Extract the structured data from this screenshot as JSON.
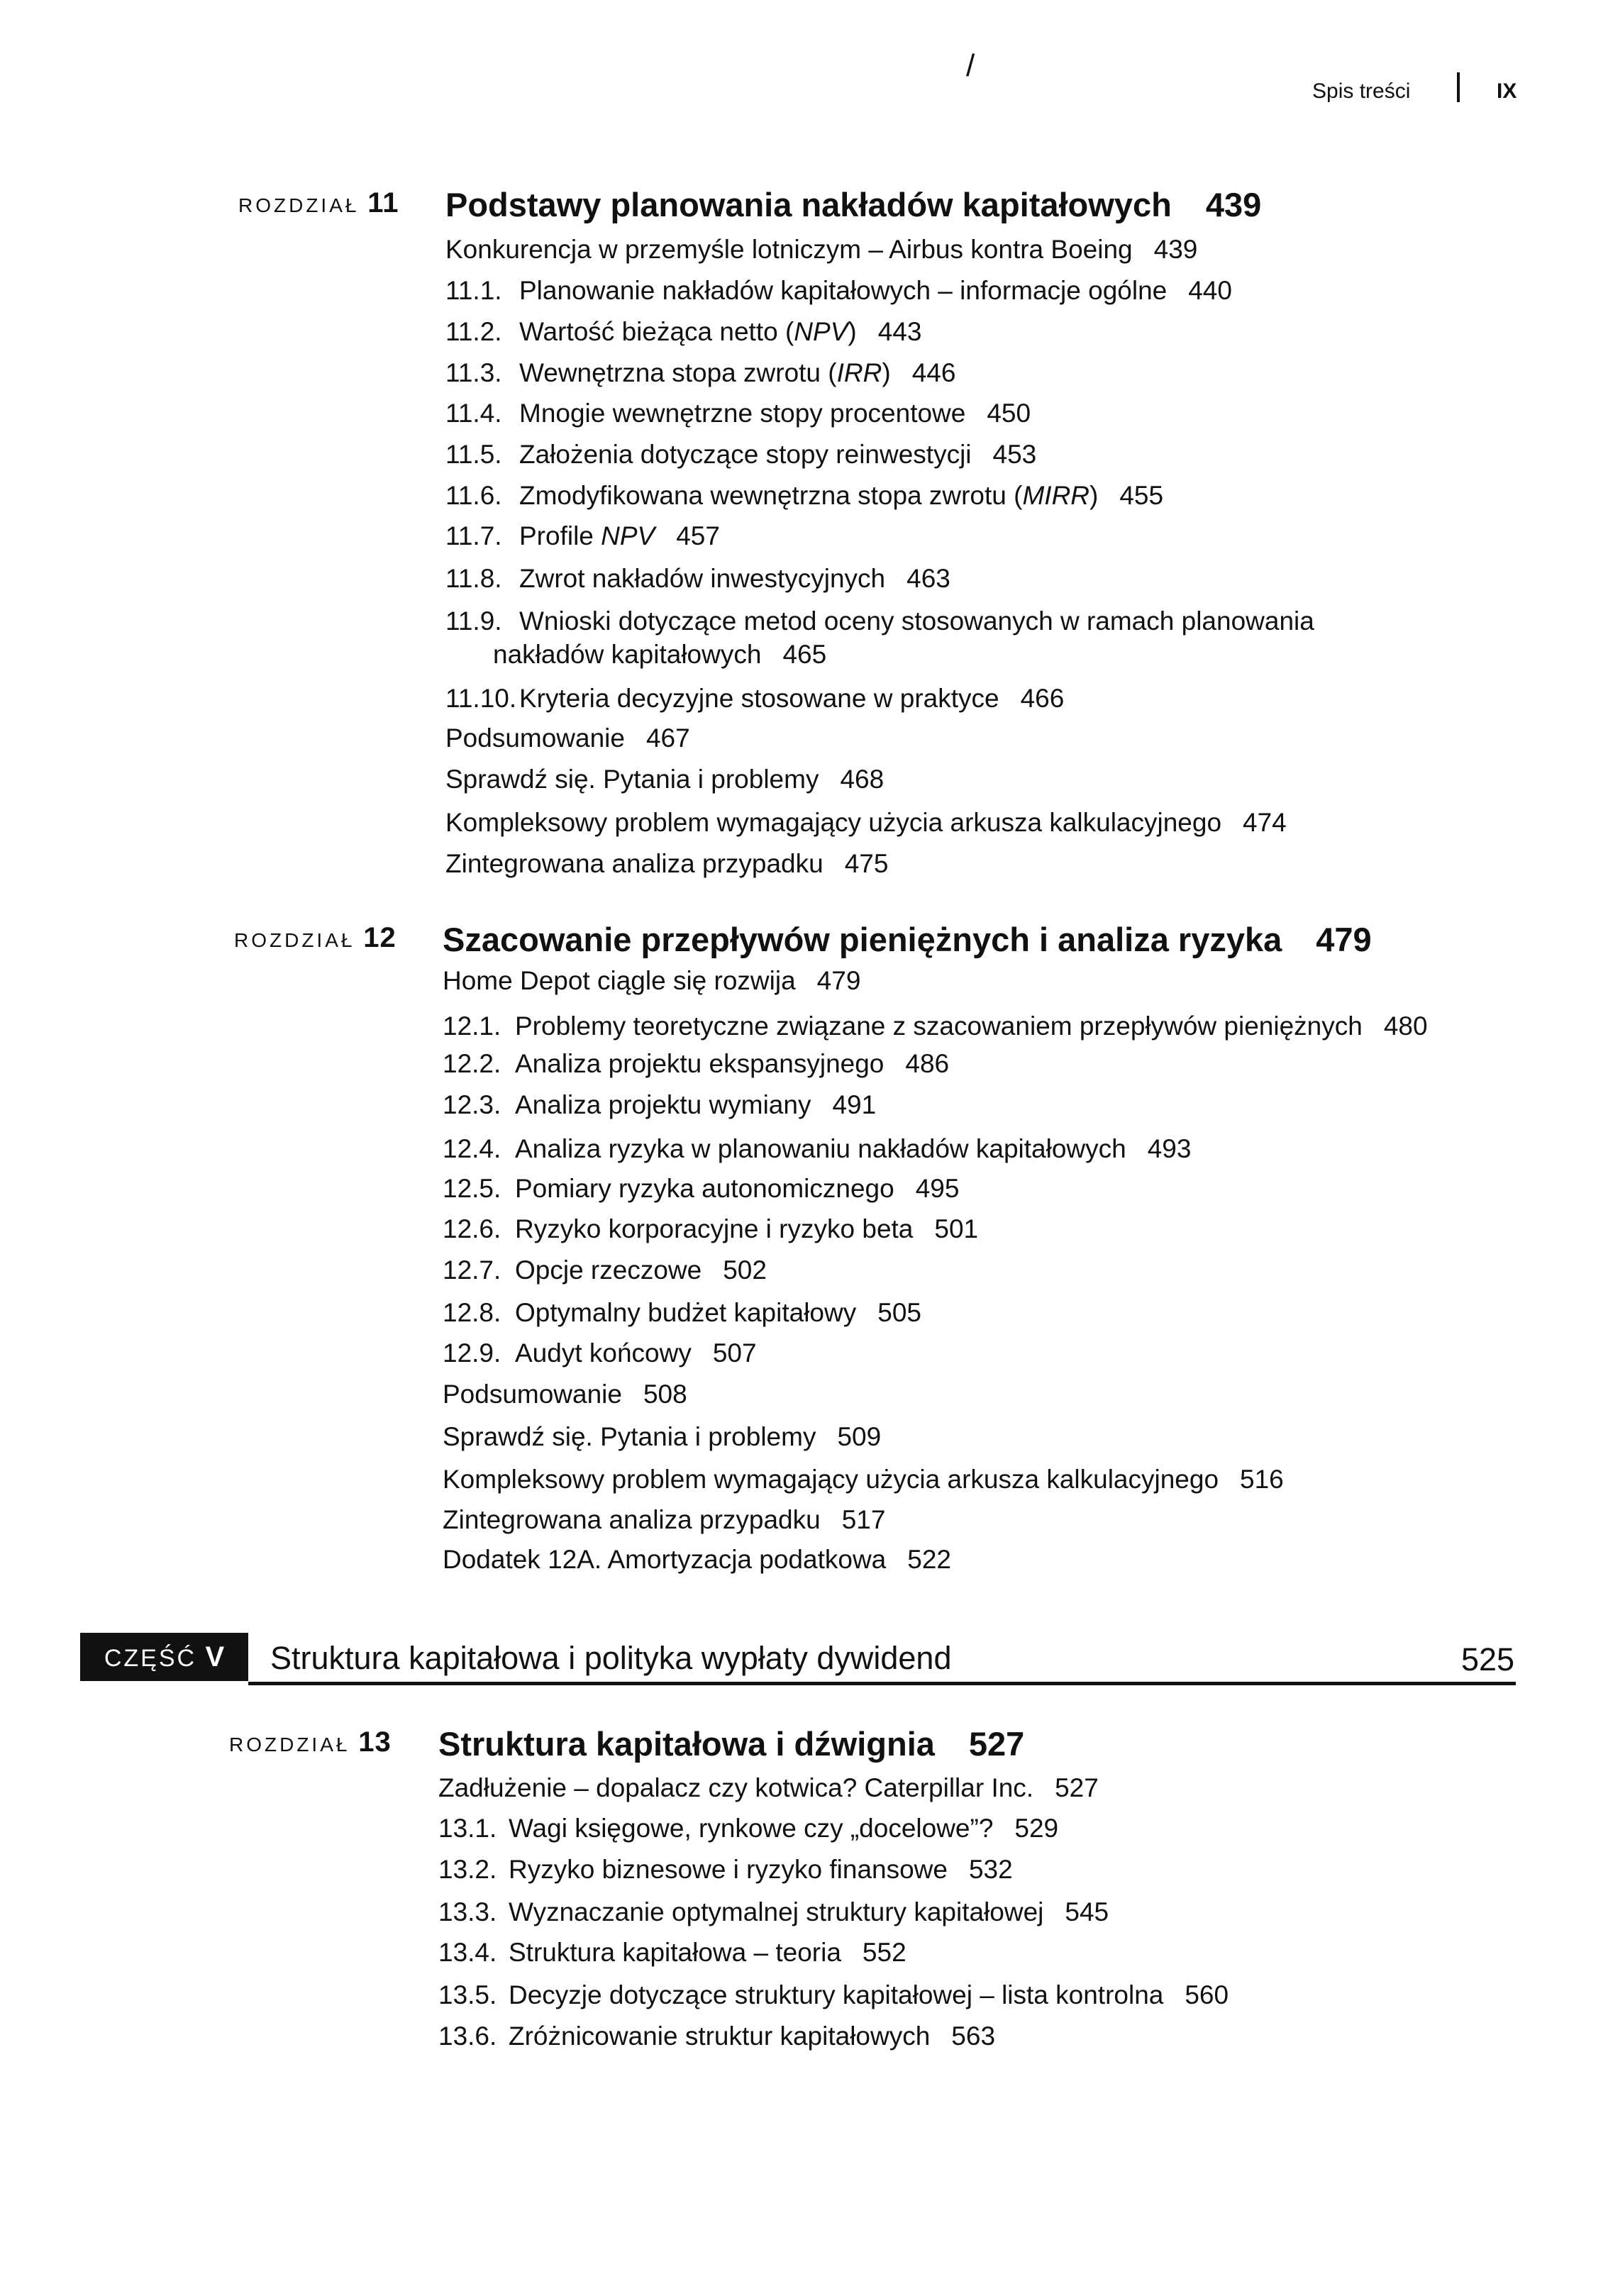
{
  "header": {
    "section": "Spis treści",
    "page": "IX",
    "mark": "/"
  },
  "chapters": [
    {
      "label": "ROZDZIAŁ",
      "number": "11",
      "title": "Podstawy planowania nakładów kapitałowych",
      "page": "439",
      "entries": [
        {
          "num": "",
          "text": "Konkurencja w przemyśle lotniczym – Airbus kontra Boeing",
          "page": "439"
        },
        {
          "num": "11.1.",
          "text": "Planowanie nakładów kapitałowych – informacje ogólne",
          "page": "440"
        },
        {
          "num": "11.2.",
          "text": "Wartość bieżąca netto (",
          "em": "NPV",
          "after": ")",
          "page": "443"
        },
        {
          "num": "11.3.",
          "text": "Wewnętrzna stopa zwrotu (",
          "em": "IRR",
          "after": ")",
          "page": "446"
        },
        {
          "num": "11.4.",
          "text": "Mnogie wewnętrzne stopy procentowe",
          "page": "450"
        },
        {
          "num": "11.5.",
          "text": "Założenia dotyczące stopy reinwestycji",
          "page": "453"
        },
        {
          "num": "11.6.",
          "text": "Zmodyfikowana wewnętrzna stopa zwrotu (",
          "em": "MIRR",
          "after": ")",
          "page": "455"
        },
        {
          "num": "11.7.",
          "text": "Profile ",
          "em": "NPV",
          "after": "",
          "page": "457"
        },
        {
          "num": "11.8.",
          "text": "Zwrot nakładów inwestycyjnych",
          "page": "463"
        },
        {
          "num": "11.9.",
          "text": "Wnioski dotyczące metod oceny stosowanych w ramach planowania",
          "page": ""
        },
        {
          "num": "",
          "text": "nakładów kapitałowych",
          "page": "465",
          "cont": true
        },
        {
          "num": "11.10.",
          "text": "Kryteria decyzyjne stosowane w praktyce",
          "page": "466"
        },
        {
          "num": "",
          "text": "Podsumowanie",
          "page": "467"
        },
        {
          "num": "",
          "text": "Sprawdź się. Pytania i problemy",
          "page": "468"
        },
        {
          "num": "",
          "text": "Kompleksowy problem wymagający użycia arkusza kalkulacyjnego",
          "page": "474"
        },
        {
          "num": "",
          "text": "Zintegrowana analiza przypadku",
          "page": "475"
        }
      ]
    },
    {
      "label": "ROZDZIAŁ",
      "number": "12",
      "title": "Szacowanie przepływów pieniężnych i analiza ryzyka",
      "page": "479",
      "entries": [
        {
          "num": "",
          "text": "Home Depot ciągle się rozwija",
          "page": "479"
        },
        {
          "num": "12.1.",
          "text": "Problemy teoretyczne związane z szacowaniem przepływów pieniężnych",
          "page": "480"
        },
        {
          "num": "12.2.",
          "text": "Analiza projektu ekspansyjnego",
          "page": "486"
        },
        {
          "num": "12.3.",
          "text": "Analiza projektu wymiany",
          "page": "491"
        },
        {
          "num": "12.4.",
          "text": "Analiza ryzyka w planowaniu nakładów kapitałowych",
          "page": "493"
        },
        {
          "num": "12.5.",
          "text": "Pomiary ryzyka autonomicznego",
          "page": "495"
        },
        {
          "num": "12.6.",
          "text": "Ryzyko korporacyjne i ryzyko beta",
          "page": "501"
        },
        {
          "num": "12.7.",
          "text": "Opcje rzeczowe",
          "page": "502"
        },
        {
          "num": "12.8.",
          "text": "Optymalny budżet kapitałowy",
          "page": "505"
        },
        {
          "num": "12.9.",
          "text": "Audyt końcowy",
          "page": "507"
        },
        {
          "num": "",
          "text": "Podsumowanie",
          "page": "508"
        },
        {
          "num": "",
          "text": "Sprawdź się. Pytania i problemy",
          "page": "509"
        },
        {
          "num": "",
          "text": "Kompleksowy problem wymagający użycia arkusza kalkulacyjnego",
          "page": "516"
        },
        {
          "num": "",
          "text": "Zintegrowana analiza przypadku",
          "page": "517"
        },
        {
          "num": "",
          "text": "Dodatek 12A. Amortyzacja podatkowa",
          "page": "522"
        }
      ]
    },
    {
      "label": "ROZDZIAŁ",
      "number": "13",
      "title": "Struktura kapitałowa i dźwignia",
      "page": "527",
      "entries": [
        {
          "num": "",
          "text": "Zadłużenie – dopalacz czy kotwica? Caterpillar Inc.",
          "page": "527"
        },
        {
          "num": "13.1.",
          "text": "Wagi księgowe, rynkowe czy „docelowe”?",
          "page": "529"
        },
        {
          "num": "13.2.",
          "text": "Ryzyko biznesowe i ryzyko finansowe",
          "page": "532"
        },
        {
          "num": "13.3.",
          "text": "Wyznaczanie optymalnej struktury kapitałowej",
          "page": "545"
        },
        {
          "num": "13.4.",
          "text": "Struktura kapitałowa – teoria",
          "page": "552"
        },
        {
          "num": "13.5.",
          "text": "Decyzje dotyczące struktury kapitałowej – lista kontrolna",
          "page": "560"
        },
        {
          "num": "13.6.",
          "text": "Zróżnicowanie struktur kapitałowych",
          "page": "563"
        }
      ]
    }
  ],
  "part": {
    "label": "CZĘŚĆ",
    "number": "V",
    "title": "Struktura kapitałowa i polityka wypłaty dywidend",
    "page": "525"
  }
}
